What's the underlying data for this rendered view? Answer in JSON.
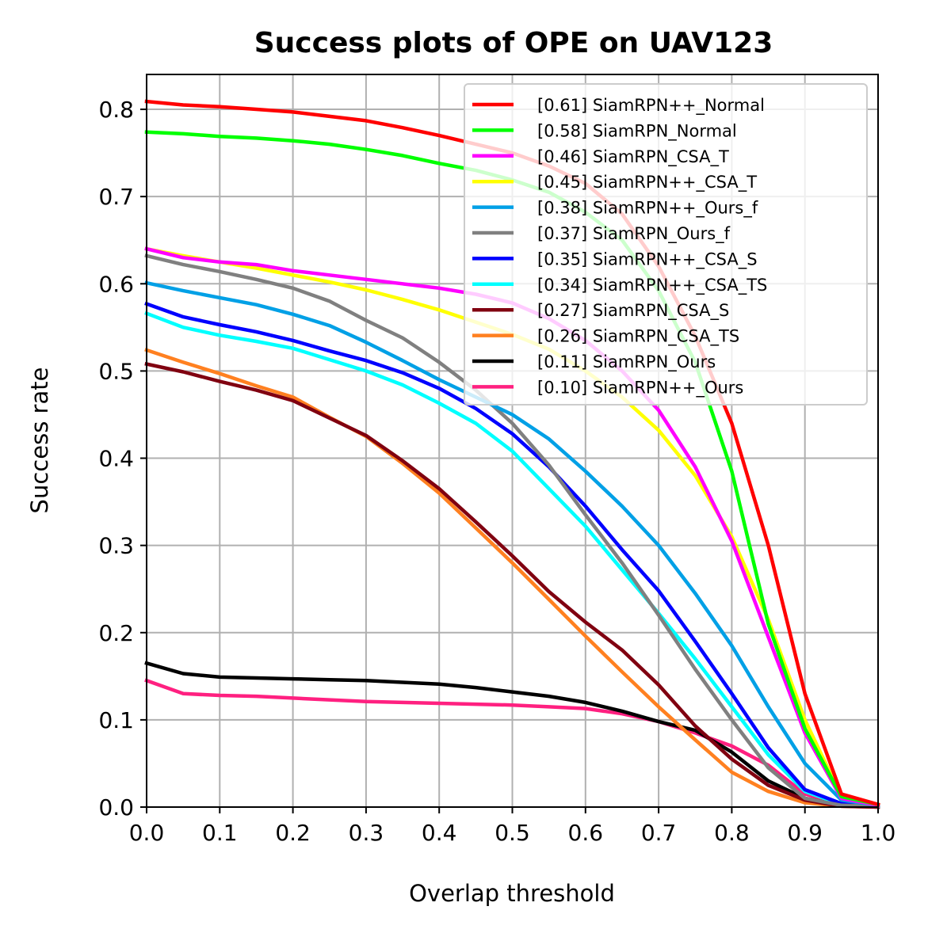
{
  "chart_data": {
    "type": "line",
    "title": "Success plots of OPE on UAV123",
    "xlabel": "Overlap threshold",
    "ylabel": "Success rate",
    "xlim": [
      0,
      1
    ],
    "ylim": [
      0,
      0.84
    ],
    "grid": true,
    "legend_position": "top-right",
    "x_ticks": [
      "0.0",
      "0.1",
      "0.2",
      "0.3",
      "0.4",
      "0.5",
      "0.6",
      "0.7",
      "0.8",
      "0.9",
      "1.0"
    ],
    "y_ticks": [
      "0.0",
      "0.1",
      "0.2",
      "0.3",
      "0.4",
      "0.5",
      "0.6",
      "0.7",
      "0.8"
    ],
    "x": [
      0,
      0.05,
      0.1,
      0.15,
      0.2,
      0.25,
      0.3,
      0.35,
      0.4,
      0.45,
      0.5,
      0.55,
      0.6,
      0.65,
      0.7,
      0.75,
      0.8,
      0.85,
      0.9,
      0.95,
      1.0
    ],
    "series": [
      {
        "label": "[0.61] SiamRPN++_Normal",
        "color": "#ff0000",
        "values": [
          0.809,
          0.805,
          0.803,
          0.8,
          0.797,
          0.792,
          0.787,
          0.779,
          0.77,
          0.76,
          0.75,
          0.735,
          0.715,
          0.68,
          0.62,
          0.54,
          0.44,
          0.3,
          0.13,
          0.015,
          0.003
        ]
      },
      {
        "label": "[0.58] SiamRPN_Normal",
        "color": "#00ff00",
        "values": [
          0.774,
          0.772,
          0.769,
          0.767,
          0.764,
          0.76,
          0.754,
          0.747,
          0.738,
          0.73,
          0.719,
          0.705,
          0.682,
          0.65,
          0.592,
          0.51,
          0.385,
          0.21,
          0.09,
          0.012,
          0.003
        ]
      },
      {
        "label": "[0.46] SiamRPN_CSA_T",
        "color": "#ff00ff",
        "values": [
          0.64,
          0.63,
          0.625,
          0.622,
          0.615,
          0.61,
          0.605,
          0.6,
          0.595,
          0.588,
          0.578,
          0.56,
          0.535,
          0.5,
          0.455,
          0.39,
          0.305,
          0.195,
          0.085,
          0.01,
          0.002
        ]
      },
      {
        "label": "[0.45] SiamRPN++_CSA_T",
        "color": "#ffff00",
        "values": [
          0.64,
          0.632,
          0.625,
          0.618,
          0.61,
          0.602,
          0.593,
          0.582,
          0.57,
          0.556,
          0.542,
          0.525,
          0.5,
          0.47,
          0.432,
          0.38,
          0.31,
          0.215,
          0.1,
          0.012,
          0.002
        ]
      },
      {
        "label": "[0.38] SiamRPN++_Ours_f",
        "color": "#00a0e6",
        "values": [
          0.601,
          0.592,
          0.584,
          0.576,
          0.565,
          0.552,
          0.533,
          0.512,
          0.49,
          0.47,
          0.45,
          0.422,
          0.385,
          0.345,
          0.3,
          0.245,
          0.185,
          0.115,
          0.05,
          0.008,
          0.002
        ]
      },
      {
        "label": "[0.37] SiamRPN_Ours_f",
        "color": "#808080",
        "values": [
          0.632,
          0.622,
          0.614,
          0.605,
          0.595,
          0.58,
          0.558,
          0.538,
          0.51,
          0.478,
          0.44,
          0.392,
          0.335,
          0.28,
          0.22,
          0.158,
          0.1,
          0.045,
          0.01,
          0.002,
          0.001
        ]
      },
      {
        "label": "[0.35] SiamRPN++_CSA_S",
        "color": "#0000ff",
        "values": [
          0.577,
          0.562,
          0.553,
          0.545,
          0.535,
          0.523,
          0.512,
          0.498,
          0.48,
          0.457,
          0.428,
          0.39,
          0.345,
          0.295,
          0.248,
          0.19,
          0.13,
          0.068,
          0.02,
          0.004,
          0.001
        ]
      },
      {
        "label": "[0.34] SiamRPN++_CSA_TS",
        "color": "#00ffff",
        "values": [
          0.566,
          0.55,
          0.541,
          0.534,
          0.526,
          0.513,
          0.5,
          0.484,
          0.463,
          0.44,
          0.408,
          0.365,
          0.322,
          0.272,
          0.222,
          0.17,
          0.115,
          0.06,
          0.018,
          0.003,
          0.001
        ]
      },
      {
        "label": "[0.27] SiamRPN_CSA_S",
        "color": "#800010",
        "values": [
          0.508,
          0.499,
          0.488,
          0.478,
          0.466,
          0.446,
          0.426,
          0.397,
          0.365,
          0.327,
          0.288,
          0.247,
          0.212,
          0.18,
          0.14,
          0.093,
          0.055,
          0.025,
          0.008,
          0.001,
          0.0
        ]
      },
      {
        "label": "[0.26] SiamRPN_CSA_TS",
        "color": "#ff8020",
        "values": [
          0.524,
          0.51,
          0.497,
          0.483,
          0.47,
          0.447,
          0.425,
          0.394,
          0.36,
          0.32,
          0.28,
          0.238,
          0.196,
          0.155,
          0.115,
          0.077,
          0.04,
          0.018,
          0.005,
          0.001,
          0.0
        ]
      },
      {
        "label": "[0.11] SiamRPN_Ours",
        "color": "#000000",
        "values": [
          0.165,
          0.153,
          0.149,
          0.148,
          0.147,
          0.146,
          0.145,
          0.143,
          0.141,
          0.137,
          0.132,
          0.127,
          0.12,
          0.11,
          0.098,
          0.088,
          0.063,
          0.03,
          0.01,
          0.002,
          0.0
        ]
      },
      {
        "label": "[0.10] SiamRPN++_Ours",
        "color": "#ff2080",
        "values": [
          0.145,
          0.13,
          0.128,
          0.127,
          0.125,
          0.123,
          0.121,
          0.12,
          0.119,
          0.118,
          0.117,
          0.115,
          0.113,
          0.107,
          0.098,
          0.085,
          0.07,
          0.048,
          0.015,
          0.003,
          0.0
        ]
      }
    ]
  }
}
